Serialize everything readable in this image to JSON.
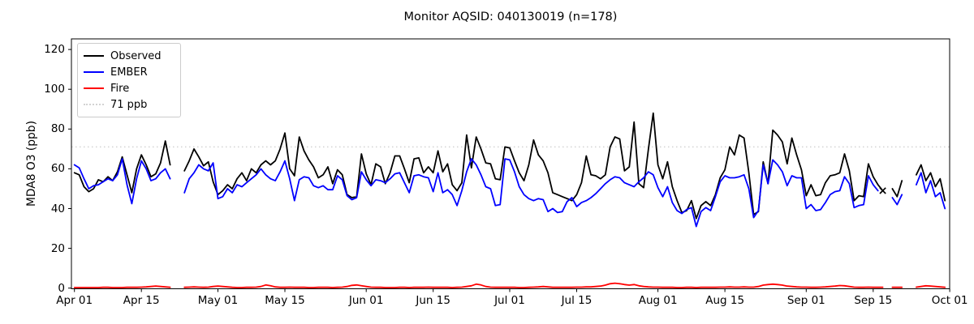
{
  "title": "Monitor AQSID: 040130019 (n=178)",
  "axes": {
    "ylabel": "MDA8 O3 (ppb)",
    "yticks": [
      0,
      20,
      40,
      60,
      80,
      100,
      120
    ],
    "xticks": [
      {
        "label": "Apr 01",
        "day": 0
      },
      {
        "label": "Apr 15",
        "day": 14
      },
      {
        "label": "May 01",
        "day": 30
      },
      {
        "label": "May 15",
        "day": 44
      },
      {
        "label": "Jun 01",
        "day": 61
      },
      {
        "label": "Jun 15",
        "day": 75
      },
      {
        "label": "Jul 01",
        "day": 91
      },
      {
        "label": "Jul 15",
        "day": 105
      },
      {
        "label": "Aug 01",
        "day": 122
      },
      {
        "label": "Aug 15",
        "day": 136
      },
      {
        "label": "Sep 01",
        "day": 153
      },
      {
        "label": "Sep 15",
        "day": 167
      },
      {
        "label": "Oct 01",
        "day": 183
      }
    ]
  },
  "legend": {
    "items": [
      {
        "label": "Observed",
        "color": "#000000",
        "style": "solid"
      },
      {
        "label": "EMBER",
        "color": "#0000ff",
        "style": "solid"
      },
      {
        "label": "Fire",
        "color": "#ff0000",
        "style": "solid"
      },
      {
        "label": "71 ppb",
        "color": "#d3d3d3",
        "style": "dotted"
      }
    ]
  },
  "chart_data": {
    "type": "line",
    "title": "Monitor AQSID: 040130019 (n=178)",
    "xlabel": "",
    "ylabel": "MDA8 O3 (ppb)",
    "ylim": [
      0,
      125
    ],
    "x_start_date": "Apr 01",
    "x_end_date": "Oct 01",
    "x_unit": "days since Apr 01 (daily values, null = missing day)",
    "threshold_ppb": 71,
    "threshold_color": "#d3d3d3",
    "grid": false,
    "legend_position": "upper left",
    "n_observed": 178,
    "series": [
      {
        "name": "Observed",
        "color": "#000000",
        "values": [
          58,
          57,
          51,
          48.5,
          50,
          54.5,
          53.5,
          56,
          54,
          58.5,
          66,
          57,
          48,
          60,
          67,
          62,
          56,
          57.5,
          63,
          74,
          62,
          null,
          null,
          59,
          64,
          70,
          66,
          61.5,
          63.5,
          53.5,
          47,
          49,
          52,
          50,
          55,
          58,
          54,
          60,
          58,
          62,
          64,
          62,
          64,
          70,
          78,
          60,
          56.5,
          76,
          69,
          64.5,
          61,
          55.5,
          57,
          61,
          52.5,
          59.5,
          57,
          47,
          45.5,
          46,
          67.5,
          57.5,
          52,
          62.5,
          61,
          52.5,
          58,
          66.5,
          66.5,
          60,
          53,
          65,
          65.5,
          58,
          61,
          58,
          69,
          58.5,
          62.5,
          52,
          49,
          53,
          77,
          60.5,
          76,
          70,
          63,
          62.5,
          55,
          54.5,
          71,
          70.5,
          64,
          58,
          54,
          62,
          74.5,
          67,
          64,
          58,
          48,
          47,
          46,
          45,
          44,
          47,
          53,
          66.5,
          57,
          56.5,
          55,
          57,
          71,
          76,
          75,
          59,
          61,
          83.5,
          52.5,
          50.5,
          70,
          88,
          62,
          55,
          63.5,
          51,
          44,
          38,
          39,
          44,
          35,
          41.5,
          43.5,
          41.5,
          47,
          55.5,
          59.5,
          71,
          67,
          77,
          75.5,
          58,
          37,
          38.5,
          63.5,
          52.5,
          79.5,
          77,
          73.5,
          62.5,
          75.5,
          67,
          59.5,
          46.5,
          52,
          46.5,
          47,
          53,
          56.5,
          57,
          58,
          67.5,
          59,
          44,
          46.5,
          46,
          62.5,
          56,
          52,
          49,
          null,
          50,
          46,
          54,
          null,
          null,
          57,
          62,
          54,
          58,
          51,
          55,
          44
        ]
      },
      {
        "name": "EMBER",
        "color": "#0000ff",
        "values": [
          62,
          60.5,
          55,
          50,
          51.5,
          52,
          53.5,
          55,
          54,
          57,
          65,
          52,
          42.5,
          55,
          64,
          60,
          54,
          55,
          58,
          60,
          55,
          null,
          null,
          48,
          55,
          58,
          62,
          60,
          59,
          63,
          45,
          46,
          50,
          48,
          52,
          51,
          53,
          55,
          57,
          60,
          57,
          55,
          54,
          58.5,
          64,
          55,
          44,
          54.5,
          56,
          55.5,
          51.5,
          50.5,
          51.5,
          49.5,
          49.5,
          56.5,
          54.5,
          46.5,
          44.5,
          45.5,
          58.5,
          54.5,
          51.5,
          54.5,
          54,
          53,
          55,
          57.5,
          58,
          53,
          48,
          56.5,
          57,
          56,
          55.5,
          48.5,
          58,
          48,
          49.5,
          47,
          41.5,
          49,
          58.5,
          65,
          62,
          57,
          51,
          50,
          41.5,
          42,
          65,
          64.5,
          58.5,
          51,
          47,
          45,
          44,
          45,
          44.5,
          38.5,
          40,
          38,
          38.5,
          43.5,
          45.5,
          41,
          43,
          44,
          45.5,
          47.5,
          50,
          52.5,
          54.5,
          56,
          55.5,
          53,
          52,
          51,
          53.5,
          55.5,
          58.5,
          57,
          50.5,
          46,
          51,
          43,
          39,
          37.5,
          39.5,
          40.5,
          31,
          38.5,
          40.5,
          39,
          46,
          53.5,
          56.5,
          55.5,
          55.5,
          56,
          57,
          50,
          35.5,
          39,
          62,
          52.5,
          64.5,
          62,
          58.5,
          51.5,
          56.5,
          55.5,
          55.5,
          40,
          42,
          39,
          39.5,
          43,
          47,
          48.5,
          49,
          56,
          52.5,
          40.5,
          41.5,
          42,
          56.5,
          52,
          49,
          null,
          null,
          45.5,
          42,
          47,
          null,
          null,
          52,
          58,
          48,
          54,
          46,
          48,
          40
        ]
      },
      {
        "name": "Fire",
        "color": "#ff0000",
        "values": [
          0.3,
          0.3,
          0.3,
          0.3,
          0.3,
          0.3,
          0.4,
          0.4,
          0.3,
          0.3,
          0.3,
          0.4,
          0.4,
          0.4,
          0.5,
          0.6,
          0.8,
          1.0,
          0.8,
          0.6,
          0.4,
          null,
          null,
          0.4,
          0.5,
          0.6,
          0.5,
          0.4,
          0.5,
          0.8,
          1.0,
          0.8,
          0.6,
          0.4,
          0.3,
          0.3,
          0.4,
          0.4,
          0.5,
          0.8,
          1.6,
          1.2,
          0.6,
          0.4,
          0.4,
          0.5,
          0.4,
          0.4,
          0.4,
          0.3,
          0.3,
          0.4,
          0.4,
          0.4,
          0.3,
          0.4,
          0.5,
          0.8,
          1.4,
          1.6,
          1.2,
          0.8,
          0.5,
          0.4,
          0.4,
          0.3,
          0.3,
          0.3,
          0.4,
          0.4,
          0.3,
          0.4,
          0.4,
          0.4,
          0.5,
          0.4,
          0.4,
          0.4,
          0.4,
          0.3,
          0.4,
          0.5,
          0.8,
          1.2,
          2.0,
          1.6,
          0.8,
          0.5,
          0.4,
          0.4,
          0.4,
          0.4,
          0.4,
          0.3,
          0.3,
          0.4,
          0.5,
          0.6,
          0.8,
          0.6,
          0.4,
          0.4,
          0.4,
          0.4,
          0.4,
          0.5,
          0.5,
          0.6,
          0.6,
          0.8,
          1.0,
          1.5,
          2.2,
          2.5,
          2.2,
          1.8,
          1.5,
          1.8,
          1.2,
          0.8,
          0.6,
          0.5,
          0.5,
          0.4,
          0.4,
          0.4,
          0.3,
          0.3,
          0.4,
          0.4,
          0.3,
          0.4,
          0.4,
          0.4,
          0.4,
          0.5,
          0.5,
          0.6,
          0.5,
          0.5,
          0.6,
          0.5,
          0.5,
          0.8,
          1.5,
          1.8,
          2.0,
          1.8,
          1.5,
          1.0,
          0.8,
          0.6,
          0.5,
          0.5,
          0.4,
          0.4,
          0.5,
          0.6,
          0.8,
          1.0,
          1.3,
          1.2,
          0.8,
          0.5,
          0.4,
          0.4,
          0.5,
          0.4,
          0.4,
          0.4,
          null,
          0.4,
          0.4,
          0.4,
          null,
          null,
          0.5,
          0.8,
          1.2,
          1.0,
          0.8,
          0.6,
          0.4
        ]
      }
    ],
    "markers": [
      {
        "series": "Observed",
        "day": 169,
        "date": "Sep 17",
        "value": 49,
        "marker": "x",
        "color": "#000000"
      }
    ]
  }
}
